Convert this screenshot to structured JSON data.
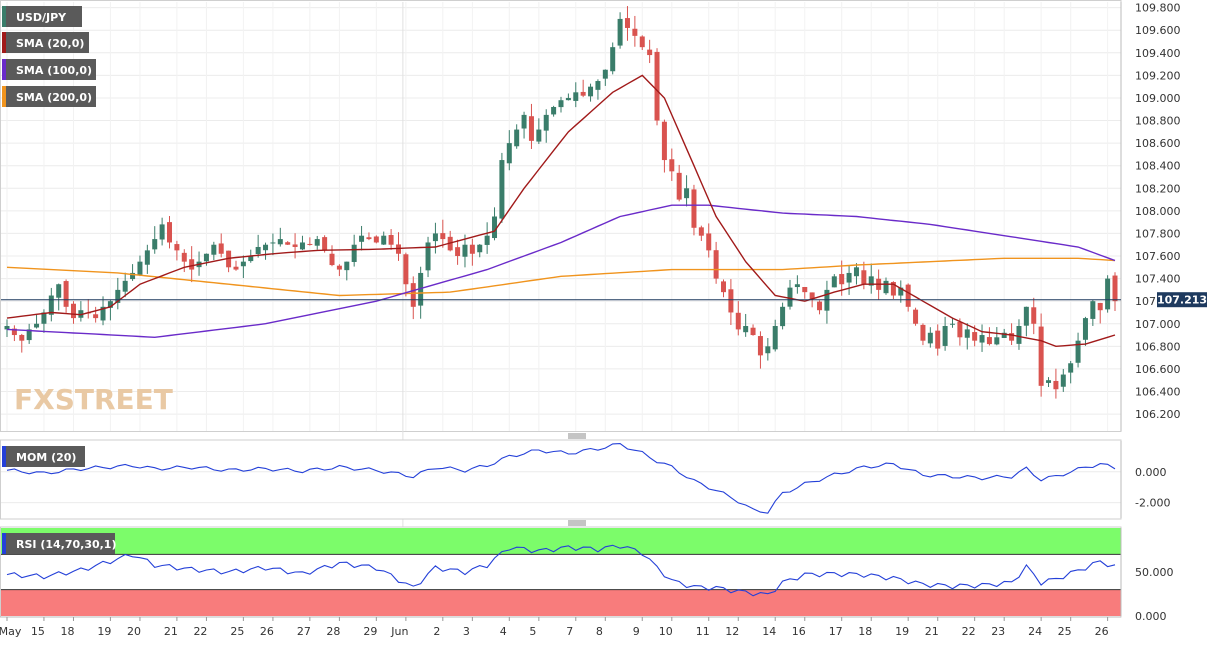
{
  "legends": {
    "symbol": "USD/JPY",
    "sma20": "SMA (20,0)",
    "sma100": "SMA (100,0)",
    "sma200": "SMA (200,0)",
    "mom": "MOM (20)",
    "rsi": "RSI (14,70,30,1)"
  },
  "watermark": "FXSTREET",
  "colors": {
    "up": "#3a7d6a",
    "down": "#d9534f",
    "sma20": "#a11a1a",
    "sma100": "#6a2bc9",
    "sma200": "#f0941e",
    "indicator": "#2440d8",
    "rsi_overbought": "#7cfc6a",
    "rsi_oversold": "#f87c7c",
    "price_label_bg": "#1e3a5f",
    "legend_bg": "#5a5a5a"
  },
  "x_labels": [
    "May",
    "15",
    "18",
    "19",
    "20",
    "21",
    "22",
    "25",
    "26",
    "27",
    "28",
    "29",
    "Jun",
    "2",
    "3",
    "4",
    "5",
    "7",
    "8",
    "9",
    "10",
    "11",
    "12",
    "14",
    "16",
    "17",
    "18",
    "19",
    "21",
    "22",
    "23",
    "24",
    "25",
    "26"
  ],
  "current_price": "107.213",
  "chart_data": [
    {
      "type": "candlestick",
      "ylim": [
        106.05,
        109.85
      ],
      "y_ticks": [
        "109.800",
        "109.600",
        "109.400",
        "109.200",
        "109.000",
        "108.800",
        "108.600",
        "108.400",
        "108.200",
        "108.000",
        "107.800",
        "107.600",
        "107.400",
        "107.200",
        "107.000",
        "106.800",
        "106.600",
        "106.400",
        "106.200"
      ],
      "current": 107.213,
      "close_path": [
        [
          0,
          106.98
        ],
        [
          1,
          106.9
        ],
        [
          2,
          106.85
        ],
        [
          3,
          106.95
        ],
        [
          4,
          107.0
        ],
        [
          5,
          107.1
        ],
        [
          6,
          107.25
        ],
        [
          7,
          107.35
        ],
        [
          8,
          107.15
        ],
        [
          9,
          107.05
        ],
        [
          10,
          107.12
        ],
        [
          11,
          107.1
        ],
        [
          12,
          107.05
        ],
        [
          13,
          107.15
        ],
        [
          14,
          107.2
        ],
        [
          15,
          107.3
        ],
        [
          16,
          107.38
        ],
        [
          17,
          107.45
        ],
        [
          18,
          107.55
        ],
        [
          19,
          107.65
        ],
        [
          20,
          107.75
        ],
        [
          21,
          107.88
        ],
        [
          22,
          107.72
        ],
        [
          23,
          107.65
        ],
        [
          24,
          107.55
        ],
        [
          25,
          107.48
        ],
        [
          26,
          107.55
        ],
        [
          27,
          107.62
        ],
        [
          28,
          107.7
        ],
        [
          29,
          107.62
        ],
        [
          30,
          107.5
        ],
        [
          31,
          107.48
        ],
        [
          32,
          107.55
        ],
        [
          33,
          107.6
        ],
        [
          34,
          107.68
        ],
        [
          35,
          107.7
        ],
        [
          36,
          107.72
        ],
        [
          37,
          107.75
        ],
        [
          38,
          107.7
        ],
        [
          39,
          107.68
        ],
        [
          40,
          107.72
        ],
        [
          41,
          107.7
        ],
        [
          42,
          107.75
        ],
        [
          43,
          107.65
        ],
        [
          44,
          107.52
        ],
        [
          45,
          107.48
        ],
        [
          46,
          107.55
        ],
        [
          47,
          107.7
        ],
        [
          48,
          107.78
        ],
        [
          49,
          107.75
        ],
        [
          50,
          107.72
        ],
        [
          51,
          107.78
        ],
        [
          52,
          107.7
        ],
        [
          53,
          107.62
        ],
        [
          54,
          107.35
        ],
        [
          55,
          107.15
        ],
        [
          56,
          107.45
        ],
        [
          57,
          107.72
        ],
        [
          58,
          107.8
        ],
        [
          59,
          107.75
        ],
        [
          60,
          107.65
        ],
        [
          61,
          107.6
        ],
        [
          62,
          107.7
        ],
        [
          63,
          107.62
        ],
        [
          64,
          107.7
        ],
        [
          65,
          107.78
        ],
        [
          66,
          107.95
        ],
        [
          67,
          108.45
        ],
        [
          68,
          108.6
        ],
        [
          69,
          108.72
        ],
        [
          70,
          108.85
        ],
        [
          71,
          108.62
        ],
        [
          72,
          108.72
        ],
        [
          73,
          108.85
        ],
        [
          74,
          108.92
        ],
        [
          75,
          108.98
        ],
        [
          76,
          109.0
        ],
        [
          77,
          109.05
        ],
        [
          78,
          109.02
        ],
        [
          79,
          109.1
        ],
        [
          80,
          109.15
        ],
        [
          81,
          109.25
        ],
        [
          82,
          109.45
        ],
        [
          83,
          109.7
        ],
        [
          84,
          109.62
        ],
        [
          85,
          109.55
        ],
        [
          86,
          109.45
        ],
        [
          87,
          109.38
        ],
        [
          88,
          108.8
        ],
        [
          89,
          108.45
        ],
        [
          90,
          108.35
        ],
        [
          91,
          108.1
        ],
        [
          92,
          108.2
        ],
        [
          93,
          107.85
        ],
        [
          94,
          107.78
        ],
        [
          95,
          107.65
        ],
        [
          96,
          107.4
        ],
        [
          97,
          107.28
        ],
        [
          98,
          107.1
        ],
        [
          99,
          106.95
        ],
        [
          100,
          106.98
        ],
        [
          101,
          106.9
        ],
        [
          102,
          106.72
        ],
        [
          103,
          106.8
        ],
        [
          104,
          106.98
        ],
        [
          105,
          107.15
        ],
        [
          106,
          107.32
        ],
        [
          107,
          107.35
        ],
        [
          108,
          107.28
        ],
        [
          109,
          107.22
        ],
        [
          110,
          107.12
        ],
        [
          111,
          107.3
        ],
        [
          112,
          107.42
        ],
        [
          113,
          107.35
        ],
        [
          114,
          107.45
        ],
        [
          115,
          107.5
        ],
        [
          116,
          107.35
        ],
        [
          117,
          107.42
        ],
        [
          118,
          107.3
        ],
        [
          119,
          107.38
        ],
        [
          120,
          107.25
        ],
        [
          121,
          107.32
        ],
        [
          122,
          107.15
        ],
        [
          123,
          107.0
        ],
        [
          124,
          106.85
        ],
        [
          125,
          106.92
        ],
        [
          126,
          106.78
        ],
        [
          127,
          106.98
        ],
        [
          128,
          107.0
        ],
        [
          129,
          106.88
        ],
        [
          130,
          106.95
        ],
        [
          131,
          106.85
        ],
        [
          132,
          106.9
        ],
        [
          133,
          106.82
        ],
        [
          134,
          106.88
        ],
        [
          135,
          106.92
        ],
        [
          136,
          106.85
        ],
        [
          137,
          106.98
        ],
        [
          138,
          107.15
        ],
        [
          139,
          107.0
        ],
        [
          140,
          106.45
        ],
        [
          141,
          106.5
        ],
        [
          142,
          106.42
        ],
        [
          143,
          106.55
        ],
        [
          144,
          106.65
        ],
        [
          145,
          106.85
        ],
        [
          146,
          107.05
        ],
        [
          147,
          107.2
        ],
        [
          148,
          107.12
        ],
        [
          149,
          107.4
        ],
        [
          150,
          107.2
        ]
      ],
      "sma20": [
        [
          0,
          107.05
        ],
        [
          6,
          107.1
        ],
        [
          10,
          107.08
        ],
        [
          14,
          107.15
        ],
        [
          18,
          107.35
        ],
        [
          24,
          107.5
        ],
        [
          30,
          107.58
        ],
        [
          36,
          107.62
        ],
        [
          42,
          107.65
        ],
        [
          50,
          107.66
        ],
        [
          58,
          107.68
        ],
        [
          66,
          107.82
        ],
        [
          70,
          108.2
        ],
        [
          76,
          108.7
        ],
        [
          82,
          109.05
        ],
        [
          86,
          109.2
        ],
        [
          89,
          109.0
        ],
        [
          92,
          108.55
        ],
        [
          96,
          107.95
        ],
        [
          100,
          107.55
        ],
        [
          104,
          107.25
        ],
        [
          108,
          107.2
        ],
        [
          112,
          107.28
        ],
        [
          116,
          107.35
        ],
        [
          120,
          107.35
        ],
        [
          124,
          107.2
        ],
        [
          128,
          107.05
        ],
        [
          132,
          106.93
        ],
        [
          136,
          106.9
        ],
        [
          140,
          106.85
        ],
        [
          142,
          106.8
        ],
        [
          146,
          106.82
        ],
        [
          150,
          106.9
        ]
      ],
      "sma100": [
        [
          0,
          106.95
        ],
        [
          20,
          106.88
        ],
        [
          35,
          107.0
        ],
        [
          50,
          107.2
        ],
        [
          65,
          107.48
        ],
        [
          75,
          107.72
        ],
        [
          83,
          107.95
        ],
        [
          90,
          108.05
        ],
        [
          95,
          108.05
        ],
        [
          105,
          107.98
        ],
        [
          115,
          107.95
        ],
        [
          125,
          107.88
        ],
        [
          135,
          107.78
        ],
        [
          145,
          107.68
        ],
        [
          150,
          107.56
        ]
      ],
      "sma200": [
        [
          0,
          107.5
        ],
        [
          15,
          107.45
        ],
        [
          30,
          107.35
        ],
        [
          45,
          107.25
        ],
        [
          60,
          107.28
        ],
        [
          75,
          107.42
        ],
        [
          90,
          107.48
        ],
        [
          105,
          107.48
        ],
        [
          115,
          107.52
        ],
        [
          125,
          107.55
        ],
        [
          135,
          107.58
        ],
        [
          145,
          107.58
        ],
        [
          150,
          107.56
        ]
      ]
    },
    {
      "type": "line",
      "name": "MOM (20)",
      "ylim": [
        -3.0,
        2.0
      ],
      "y_ticks": [
        "0.000",
        "-2.000"
      ],
      "tick_values": [
        0.0,
        -2.0
      ],
      "values": [
        [
          0,
          0.1
        ],
        [
          5,
          -0.1
        ],
        [
          10,
          0.2
        ],
        [
          17,
          0.4
        ],
        [
          20,
          0.2
        ],
        [
          25,
          0.3
        ],
        [
          30,
          0.1
        ],
        [
          35,
          0.2
        ],
        [
          40,
          0.05
        ],
        [
          45,
          0.3
        ],
        [
          50,
          0.1
        ],
        [
          55,
          -0.3
        ],
        [
          58,
          0.3
        ],
        [
          62,
          0.1
        ],
        [
          65,
          0.4
        ],
        [
          68,
          1.0
        ],
        [
          72,
          1.4
        ],
        [
          76,
          1.2
        ],
        [
          80,
          1.5
        ],
        [
          83,
          1.8
        ],
        [
          86,
          1.2
        ],
        [
          88,
          0.7
        ],
        [
          90,
          0.3
        ],
        [
          93,
          -0.6
        ],
        [
          96,
          -1.2
        ],
        [
          99,
          -1.9
        ],
        [
          101,
          -2.5
        ],
        [
          103,
          -2.6
        ],
        [
          105,
          -1.4
        ],
        [
          108,
          -0.8
        ],
        [
          112,
          -0.2
        ],
        [
          116,
          0.3
        ],
        [
          120,
          0.5
        ],
        [
          124,
          -0.2
        ],
        [
          128,
          -0.3
        ],
        [
          132,
          -0.4
        ],
        [
          136,
          -0.3
        ],
        [
          138,
          0.2
        ],
        [
          140,
          -0.5
        ],
        [
          142,
          -0.3
        ],
        [
          146,
          0.3
        ],
        [
          148,
          0.5
        ],
        [
          150,
          0.25
        ]
      ]
    },
    {
      "type": "line",
      "name": "RSI (14,70,30,1)",
      "ylim": [
        0,
        100
      ],
      "y_ticks": [
        "50.000",
        "0.000"
      ],
      "tick_values": [
        50,
        0
      ],
      "overbought": 70,
      "oversold": 30,
      "values": [
        [
          0,
          47
        ],
        [
          5,
          45
        ],
        [
          10,
          52
        ],
        [
          17,
          70
        ],
        [
          20,
          58
        ],
        [
          25,
          53
        ],
        [
          30,
          50
        ],
        [
          35,
          55
        ],
        [
          40,
          48
        ],
        [
          45,
          60
        ],
        [
          50,
          55
        ],
        [
          55,
          32
        ],
        [
          58,
          55
        ],
        [
          62,
          50
        ],
        [
          65,
          58
        ],
        [
          68,
          78
        ],
        [
          72,
          74
        ],
        [
          76,
          78
        ],
        [
          80,
          76
        ],
        [
          83,
          80
        ],
        [
          86,
          72
        ],
        [
          88,
          55
        ],
        [
          90,
          40
        ],
        [
          93,
          33
        ],
        [
          96,
          32
        ],
        [
          99,
          28
        ],
        [
          101,
          26
        ],
        [
          103,
          24
        ],
        [
          105,
          38
        ],
        [
          108,
          47
        ],
        [
          112,
          48
        ],
        [
          116,
          47
        ],
        [
          120,
          43
        ],
        [
          124,
          36
        ],
        [
          128,
          34
        ],
        [
          132,
          35
        ],
        [
          136,
          38
        ],
        [
          138,
          56
        ],
        [
          140,
          38
        ],
        [
          142,
          42
        ],
        [
          146,
          55
        ],
        [
          148,
          62
        ],
        [
          150,
          56
        ]
      ]
    }
  ]
}
